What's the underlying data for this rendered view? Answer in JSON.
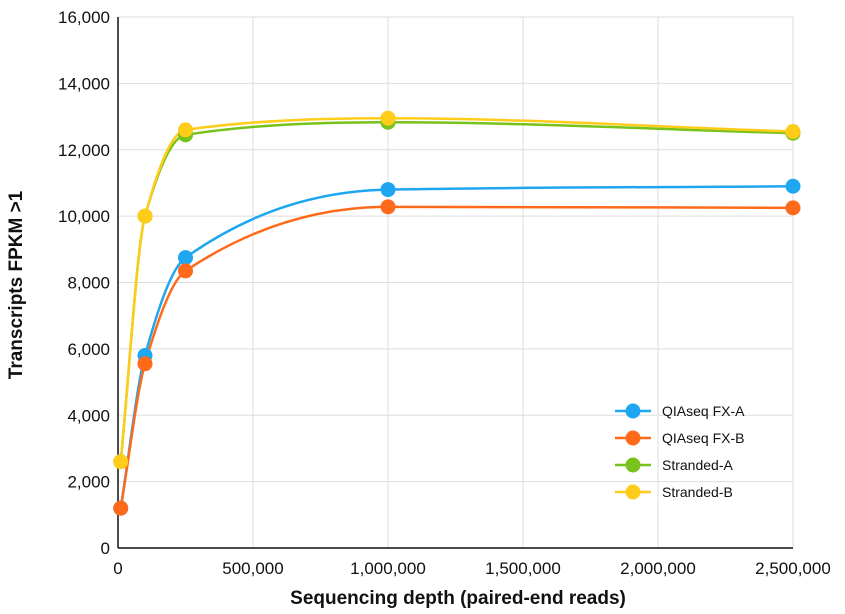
{
  "chart_data": {
    "type": "line",
    "title": "",
    "xlabel": "Sequencing depth (paired-end reads)",
    "ylabel": "Transcripts FPKM >1",
    "xlim": [
      0,
      2500000
    ],
    "ylim": [
      0,
      16000
    ],
    "x_ticks": [
      0,
      500000,
      1000000,
      1500000,
      2000000,
      2500000
    ],
    "x_tick_labels": [
      "0",
      "500,000",
      "1,000,000",
      "1,500,000",
      "2,000,000",
      "2,500,000"
    ],
    "y_ticks": [
      0,
      2000,
      4000,
      6000,
      8000,
      10000,
      12000,
      14000,
      16000
    ],
    "y_tick_labels": [
      "0",
      "2,000",
      "4,000",
      "6,000",
      "8,000",
      "10,000",
      "12,000",
      "14,000",
      "16,000"
    ],
    "grid": true,
    "smooth": true,
    "legend_position": "lower-right",
    "series": [
      {
        "name": "QIAseq FX-A",
        "color": "#1ea7f0",
        "points": [
          [
            10000,
            1200
          ],
          [
            100000,
            5800
          ],
          [
            250000,
            8750
          ],
          [
            1000000,
            10800
          ],
          [
            2500000,
            10900
          ]
        ]
      },
      {
        "name": "QIAseq FX-B",
        "color": "#ff6a1a",
        "points": [
          [
            10000,
            1200
          ],
          [
            100000,
            5550
          ],
          [
            250000,
            8350
          ],
          [
            1000000,
            10280
          ],
          [
            2500000,
            10250
          ]
        ]
      },
      {
        "name": "Stranded-A",
        "color": "#77c21b",
        "points": [
          [
            10000,
            2600
          ],
          [
            100000,
            10000
          ],
          [
            250000,
            12450
          ],
          [
            1000000,
            12830
          ],
          [
            2500000,
            12500
          ]
        ]
      },
      {
        "name": "Stranded-B",
        "color": "#ffcc1a",
        "points": [
          [
            10000,
            2600
          ],
          [
            100000,
            10000
          ],
          [
            250000,
            12600
          ],
          [
            1000000,
            12950
          ],
          [
            2500000,
            12550
          ]
        ]
      }
    ]
  }
}
